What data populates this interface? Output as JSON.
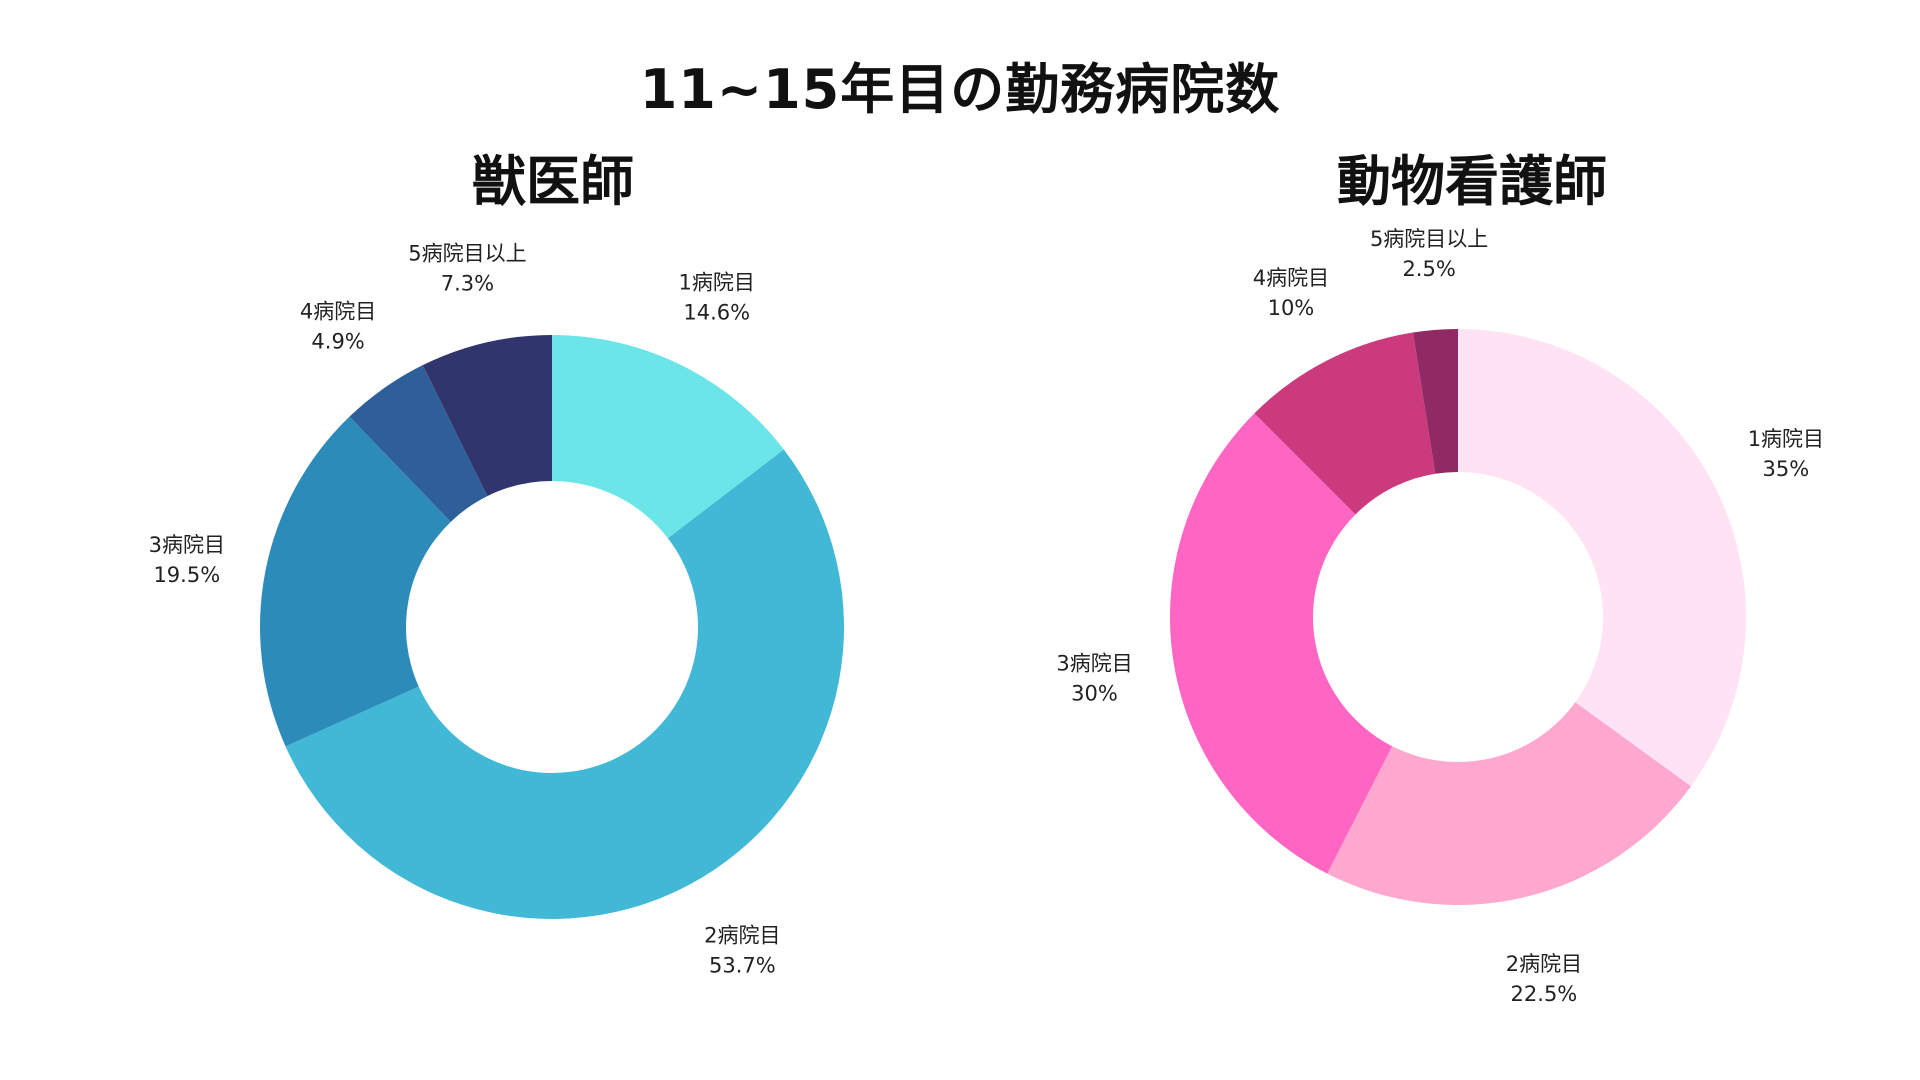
{
  "title": "11~15年目の勤務病院数",
  "chart_data": [
    {
      "type": "pie",
      "title": "獣医師",
      "categories": [
        "1病院目",
        "2病院目",
        "3病院目",
        "4病院目",
        "5病院目以上"
      ],
      "values": [
        14.6,
        53.7,
        19.5,
        4.9,
        7.3
      ],
      "value_labels": [
        "14.6%",
        "53.7%",
        "19.5%",
        "4.9%",
        "7.3%"
      ],
      "colors": [
        "#6CE5E8",
        "#41B8D5",
        "#2D8BBA",
        "#2F5F98",
        "#31356E"
      ],
      "hole": true,
      "legend": "none"
    },
    {
      "type": "pie",
      "title": "動物看護師",
      "categories": [
        "1病院目",
        "2病院目",
        "3病院目",
        "4病院目",
        "5病院目以上"
      ],
      "values": [
        35,
        22.5,
        30,
        10,
        2.5
      ],
      "value_labels": [
        "35%",
        "22.5%",
        "30%",
        "10%",
        "2.5%"
      ],
      "colors": [
        "#FFE3F4",
        "#FFA8CF",
        "#FF66C4",
        "#CB3A7D",
        "#912A64"
      ],
      "hole": true,
      "legend": "none"
    }
  ]
}
